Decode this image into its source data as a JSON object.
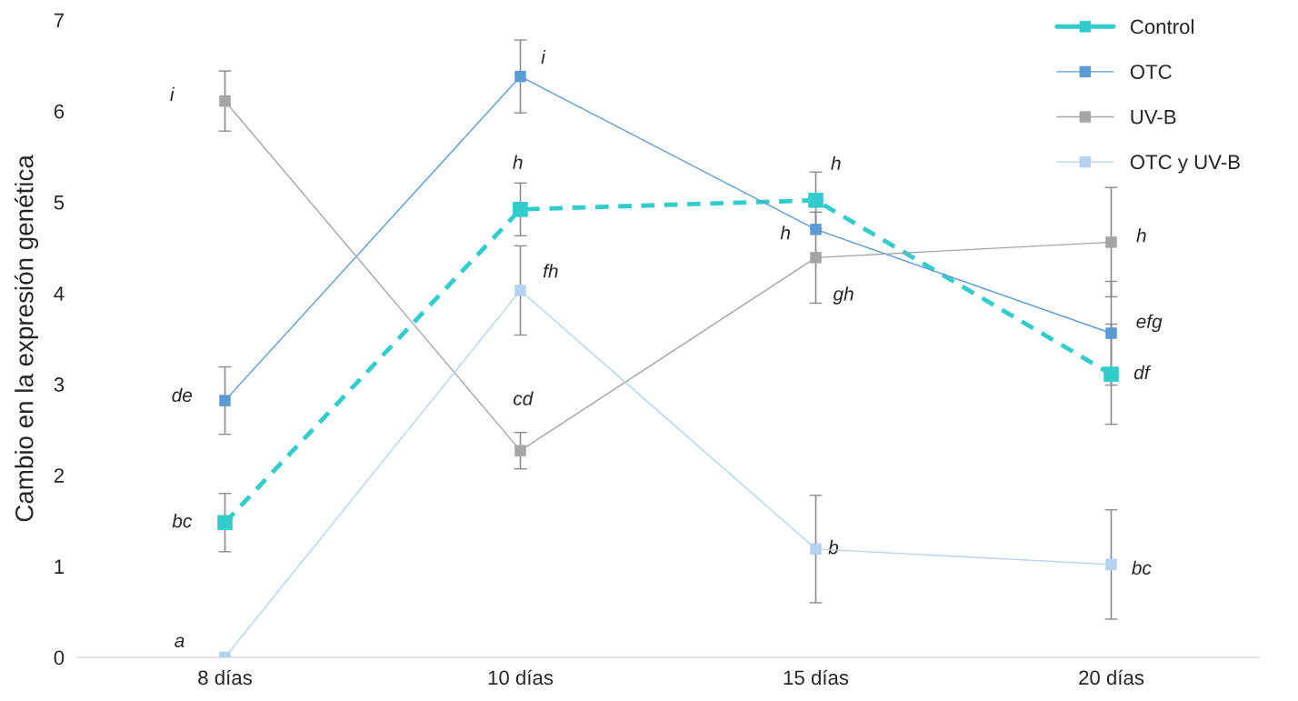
{
  "chart_data": {
    "type": "line",
    "ylabel": "Cambio en la expresión genética",
    "categories": [
      "8 días",
      "10 días",
      "15 días",
      "20 días"
    ],
    "series": [
      {
        "name": "Control",
        "color": "#33cccc",
        "line_style": "dashed",
        "values": [
          1.48,
          4.92,
          5.02,
          3.11
        ],
        "errors": [
          0.32,
          0.29,
          0.31,
          0.55
        ]
      },
      {
        "name": "OTC",
        "color": "#5b9bd5",
        "line_style": "solid",
        "values": [
          2.82,
          6.38,
          4.7,
          3.56
        ],
        "errors": [
          0.37,
          0.4,
          null,
          0.57
        ]
      },
      {
        "name": "UV-B",
        "color": "#a5a5a5",
        "line_style": "solid",
        "values": [
          6.11,
          2.27,
          4.39,
          4.56
        ],
        "errors": [
          0.33,
          0.2,
          0.5,
          0.6
        ]
      },
      {
        "name": "OTC y UV-B",
        "color": "#b4d2ef",
        "line_style": "solid",
        "values": [
          0.0,
          4.03,
          1.19,
          1.02
        ],
        "errors": [
          null,
          0.49,
          0.59,
          0.6
        ]
      }
    ],
    "ylim": [
      0,
      7
    ],
    "yticks": [
      0,
      1,
      2,
      3,
      4,
      5,
      6,
      7
    ],
    "marker": "square",
    "grid": false,
    "legend": "top right",
    "annotations": [
      {
        "text": "i",
        "x": "8 días",
        "y": 6.11
      },
      {
        "text": "de",
        "x": "8 días",
        "y": 2.82
      },
      {
        "text": "bc",
        "x": "8 días",
        "y": 1.48
      },
      {
        "text": "a",
        "x": "8 días",
        "y": 0.0
      },
      {
        "text": "i",
        "x": "10 días",
        "y": 6.38
      },
      {
        "text": "h",
        "x": "10 días",
        "y": 4.92
      },
      {
        "text": "fh",
        "x": "10 días",
        "y": 4.03
      },
      {
        "text": "cd",
        "x": "10 días",
        "y": 2.27
      },
      {
        "text": "h",
        "x": "15 días",
        "y": 5.02
      },
      {
        "text": "h",
        "x": "15 días",
        "y": 4.7
      },
      {
        "text": "gh",
        "x": "15 días",
        "y": 4.39
      },
      {
        "text": "b",
        "x": "15 días",
        "y": 1.19
      },
      {
        "text": "h",
        "x": "20 días",
        "y": 4.56
      },
      {
        "text": "efg",
        "x": "20 días",
        "y": 3.56
      },
      {
        "text": "df",
        "x": "20 días",
        "y": 3.11
      },
      {
        "text": "bc",
        "x": "20 días",
        "y": 1.02
      }
    ]
  }
}
